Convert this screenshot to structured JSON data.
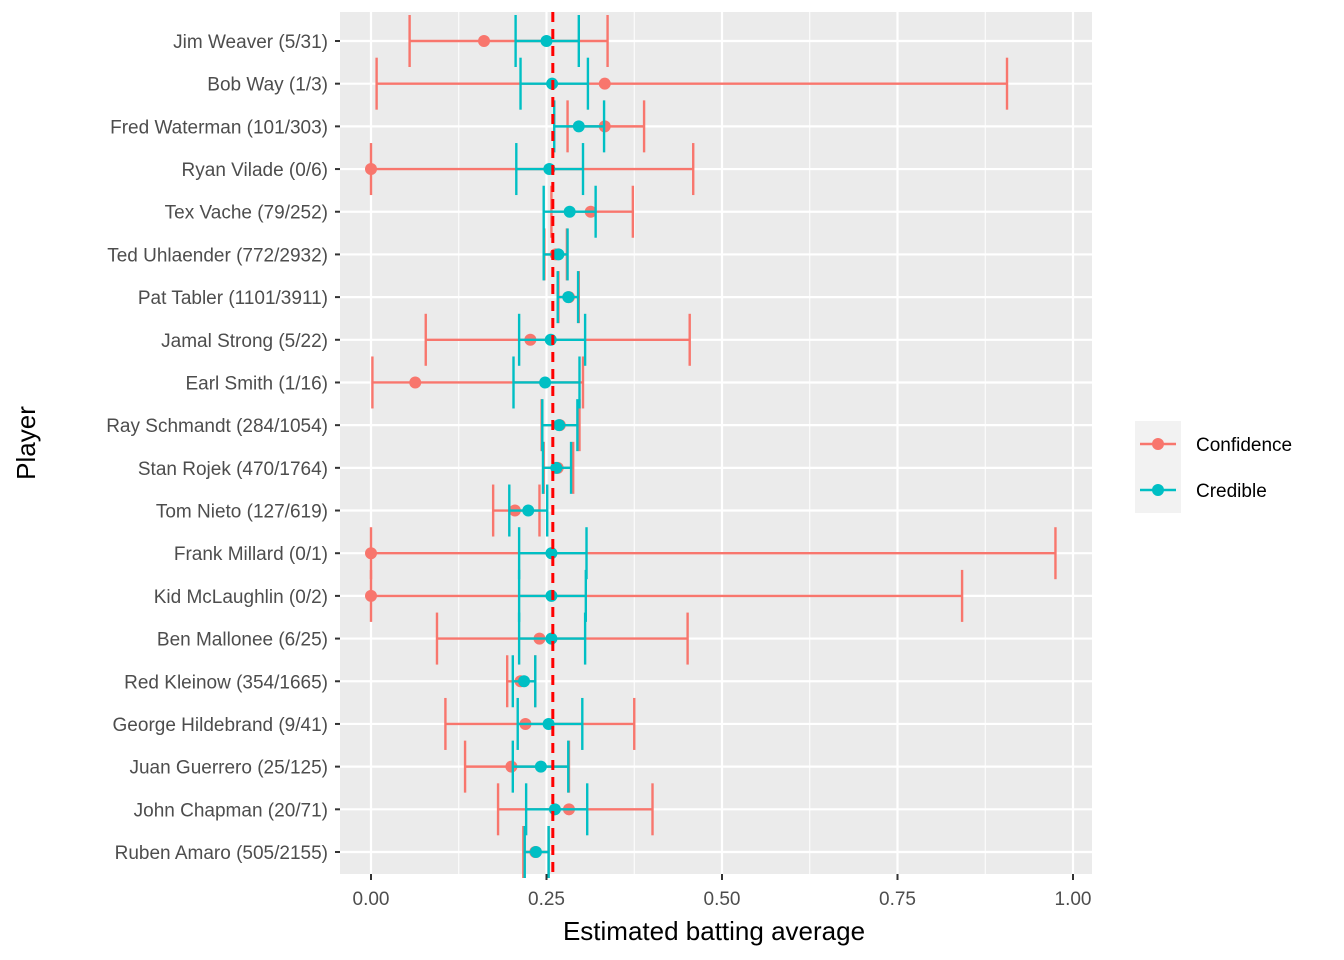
{
  "chart_data": {
    "type": "errorbar",
    "title": "",
    "xlabel": "Estimated batting average",
    "ylabel": "Player",
    "xlim": [
      -0.05,
      1.02
    ],
    "xticks": [
      0.0,
      0.25,
      0.5,
      0.75,
      1.0
    ],
    "xtick_labels": [
      "0.00",
      "0.25",
      "0.50",
      "0.75",
      "1.00"
    ],
    "grid": true,
    "reference_line": {
      "x": 0.259,
      "style": "dashed",
      "color": "#ff0000"
    },
    "legend": {
      "position": "right",
      "entries": [
        {
          "name": "Confidence",
          "color": "#F8766D"
        },
        {
          "name": "Credible",
          "color": "#00BFC4"
        }
      ]
    },
    "categories": [
      "Jim Weaver (5/31)",
      "Bob Way (1/3)",
      "Fred Waterman (101/303)",
      "Ryan Vilade (0/6)",
      "Tex Vache (79/252)",
      "Ted Uhlaender (772/2932)",
      "Pat Tabler (1101/3911)",
      "Jamal Strong (5/22)",
      "Earl Smith (1/16)",
      "Ray Schmandt (284/1054)",
      "Stan Rojek (470/1764)",
      "Tom Nieto (127/619)",
      "Frank Millard (0/1)",
      "Kid McLaughlin (0/2)",
      "Ben Mallonee (6/25)",
      "Red Kleinow (354/1665)",
      "George Hildebrand (9/41)",
      "Juan Guerrero (25/125)",
      "John Chapman (20/71)",
      "Ruben Amaro (505/2155)"
    ],
    "series": [
      {
        "name": "Confidence",
        "color": "#F8766D",
        "estimate": [
          0.161,
          0.333,
          0.333,
          0.0,
          0.313,
          0.263,
          0.282,
          0.227,
          0.063,
          0.269,
          0.266,
          0.205,
          0.0,
          0.0,
          0.24,
          0.213,
          0.22,
          0.2,
          0.282,
          0.234
        ],
        "low": [
          0.055,
          0.008,
          0.28,
          0.0,
          0.257,
          0.247,
          0.267,
          0.078,
          0.002,
          0.243,
          0.246,
          0.174,
          0.0,
          0.0,
          0.094,
          0.194,
          0.106,
          0.134,
          0.181,
          0.217
        ],
        "high": [
          0.337,
          0.906,
          0.389,
          0.459,
          0.373,
          0.279,
          0.296,
          0.454,
          0.302,
          0.297,
          0.288,
          0.24,
          0.975,
          0.842,
          0.451,
          0.234,
          0.375,
          0.282,
          0.401,
          0.253
        ]
      },
      {
        "name": "Credible",
        "color": "#00BFC4",
        "estimate": [
          0.25,
          0.258,
          0.296,
          0.254,
          0.283,
          0.267,
          0.281,
          0.256,
          0.248,
          0.268,
          0.264,
          0.224,
          0.257,
          0.257,
          0.257,
          0.218,
          0.253,
          0.242,
          0.262,
          0.235
        ],
        "low": [
          0.206,
          0.213,
          0.261,
          0.207,
          0.246,
          0.246,
          0.266,
          0.211,
          0.203,
          0.244,
          0.245,
          0.197,
          0.211,
          0.211,
          0.211,
          0.202,
          0.209,
          0.202,
          0.221,
          0.219
        ],
        "high": [
          0.296,
          0.309,
          0.332,
          0.302,
          0.32,
          0.28,
          0.295,
          0.305,
          0.297,
          0.294,
          0.285,
          0.251,
          0.307,
          0.306,
          0.305,
          0.234,
          0.301,
          0.281,
          0.308,
          0.253
        ]
      }
    ]
  }
}
